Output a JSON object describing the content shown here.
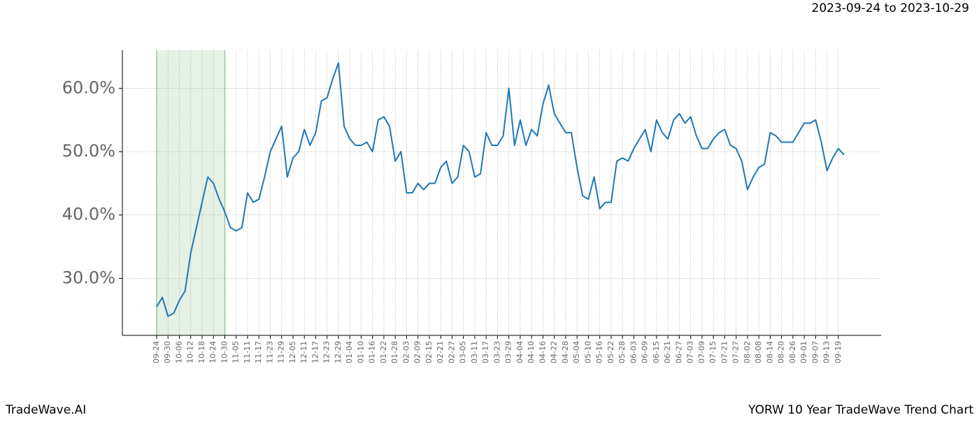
{
  "chart_data": {
    "type": "line",
    "title": "2023-09-24 to 2023-10-29",
    "footer_left": "TradeWave.AI",
    "footer_right": "YORW 10 Year TradeWave Trend Chart",
    "highlight": [
      "09-24",
      "10-30"
    ],
    "highlight_color": "#e5f1e5",
    "grid": true,
    "categories": [
      "09-24",
      null,
      "09-30",
      null,
      "10-06",
      null,
      "10-12",
      null,
      "10-18",
      null,
      "10-24",
      null,
      "10-30",
      null,
      "11-05",
      null,
      "11-11",
      null,
      "11-17",
      null,
      "11-23",
      null,
      "11-29",
      null,
      "12-05",
      null,
      "12-11",
      null,
      "12-17",
      null,
      "12-23",
      null,
      "12-29",
      null,
      "01-04",
      null,
      "01-10",
      null,
      "01-16",
      null,
      "01-22",
      null,
      "01-28",
      null,
      "02-03",
      null,
      "02-09",
      null,
      "02-15",
      null,
      "02-21",
      null,
      "02-27",
      null,
      "03-05",
      null,
      "03-11",
      null,
      "03-17",
      null,
      "03-23",
      null,
      "03-29",
      null,
      "04-04",
      null,
      "04-10",
      null,
      "04-16",
      null,
      "04-22",
      null,
      "04-28",
      null,
      "05-04",
      null,
      "05-10",
      null,
      "05-16",
      null,
      "05-22",
      null,
      "05-28",
      null,
      "06-03",
      null,
      "06-09",
      null,
      "06-15",
      null,
      "06-21",
      null,
      "06-27",
      null,
      "07-03",
      null,
      "07-09",
      null,
      "07-15",
      null,
      "07-21",
      null,
      "07-27",
      null,
      "08-02",
      null,
      "08-08",
      null,
      "08-14",
      null,
      "08-20",
      null,
      "08-26",
      null,
      "09-01",
      null,
      "09-07",
      null,
      "09-13",
      null,
      "09-19",
      null
    ],
    "series": [
      {
        "color": "#1f77b4",
        "values": [
          25.5,
          27,
          24,
          24.5,
          26.5,
          28,
          34,
          38,
          42,
          46,
          45,
          42.5,
          40.5,
          38,
          37.5,
          38,
          43.5,
          42,
          42.5,
          46,
          50,
          52,
          54,
          46,
          49,
          50,
          53.5,
          51,
          53,
          58,
          58.5,
          61.5,
          64,
          54,
          52,
          51,
          51,
          51.5,
          50,
          55,
          55.5,
          54,
          48.5,
          50,
          43.5,
          43.5,
          45,
          44,
          45,
          45,
          47.5,
          48.5,
          45,
          46,
          51,
          50,
          46,
          46.5,
          53,
          51,
          51,
          52.5,
          60,
          51,
          55,
          51,
          53.5,
          52.5,
          57.5,
          60.5,
          56,
          54.5,
          53,
          53,
          47.5,
          43,
          42.5,
          46,
          41,
          42,
          42,
          48.5,
          49,
          48.5,
          50.5,
          52,
          53.5,
          50,
          55,
          53,
          52,
          55,
          56,
          54.5,
          55.5,
          52.5,
          50.5,
          50.5,
          52,
          53,
          53.5,
          51,
          50.5,
          48.5,
          44,
          46,
          47.5,
          48,
          53,
          52.5,
          51.5,
          51.5,
          51.5,
          53,
          54.5,
          54.5,
          55,
          51.5,
          47,
          49,
          50.5,
          49.5
        ]
      }
    ],
    "ylim": [
      21,
      66
    ],
    "yticks": [
      {
        "value": 30,
        "label": "30.0%"
      },
      {
        "value": 40,
        "label": "40.0%"
      },
      {
        "value": 50,
        "label": "50.0%"
      },
      {
        "value": 60,
        "label": "60.0%"
      }
    ]
  }
}
